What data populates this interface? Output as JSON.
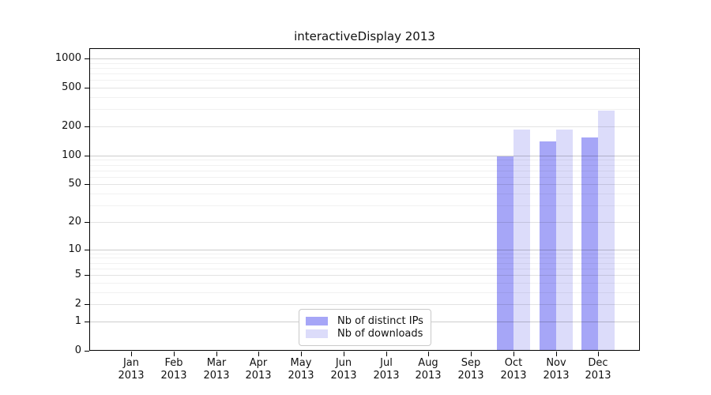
{
  "title": "interactiveDisplay 2013",
  "chart_data": {
    "type": "bar",
    "title": "interactiveDisplay 2013",
    "categories": [
      {
        "month": "Jan",
        "year": "2013"
      },
      {
        "month": "Feb",
        "year": "2013"
      },
      {
        "month": "Mar",
        "year": "2013"
      },
      {
        "month": "Apr",
        "year": "2013"
      },
      {
        "month": "May",
        "year": "2013"
      },
      {
        "month": "Jun",
        "year": "2013"
      },
      {
        "month": "Jul",
        "year": "2013"
      },
      {
        "month": "Aug",
        "year": "2013"
      },
      {
        "month": "Sep",
        "year": "2013"
      },
      {
        "month": "Oct",
        "year": "2013"
      },
      {
        "month": "Nov",
        "year": "2013"
      },
      {
        "month": "Dec",
        "year": "2013"
      }
    ],
    "series": [
      {
        "name": "Nb of distinct IPs",
        "color": "#a6a6f7",
        "values": [
          0,
          0,
          0,
          0,
          0,
          0,
          0,
          0,
          0,
          97,
          140,
          155
        ]
      },
      {
        "name": "Nb of downloads",
        "color": "#dcdcfa",
        "values": [
          0,
          0,
          0,
          0,
          0,
          0,
          0,
          0,
          0,
          185,
          187,
          290
        ]
      }
    ],
    "y_axis": {
      "scale": "log10(1+v)",
      "ticks": [
        0,
        1,
        2,
        5,
        10,
        20,
        50,
        100,
        200,
        500,
        1000
      ],
      "minor_ticks": [
        3,
        4,
        6,
        7,
        8,
        9,
        30,
        40,
        60,
        70,
        80,
        90,
        300,
        400,
        600,
        700,
        800,
        900
      ],
      "ylim": [
        0,
        1300
      ]
    },
    "grid": true,
    "legend_position": "lower center"
  },
  "legend": {
    "items": [
      {
        "label": "Nb of distinct IPs"
      },
      {
        "label": "Nb of downloads"
      }
    ]
  }
}
